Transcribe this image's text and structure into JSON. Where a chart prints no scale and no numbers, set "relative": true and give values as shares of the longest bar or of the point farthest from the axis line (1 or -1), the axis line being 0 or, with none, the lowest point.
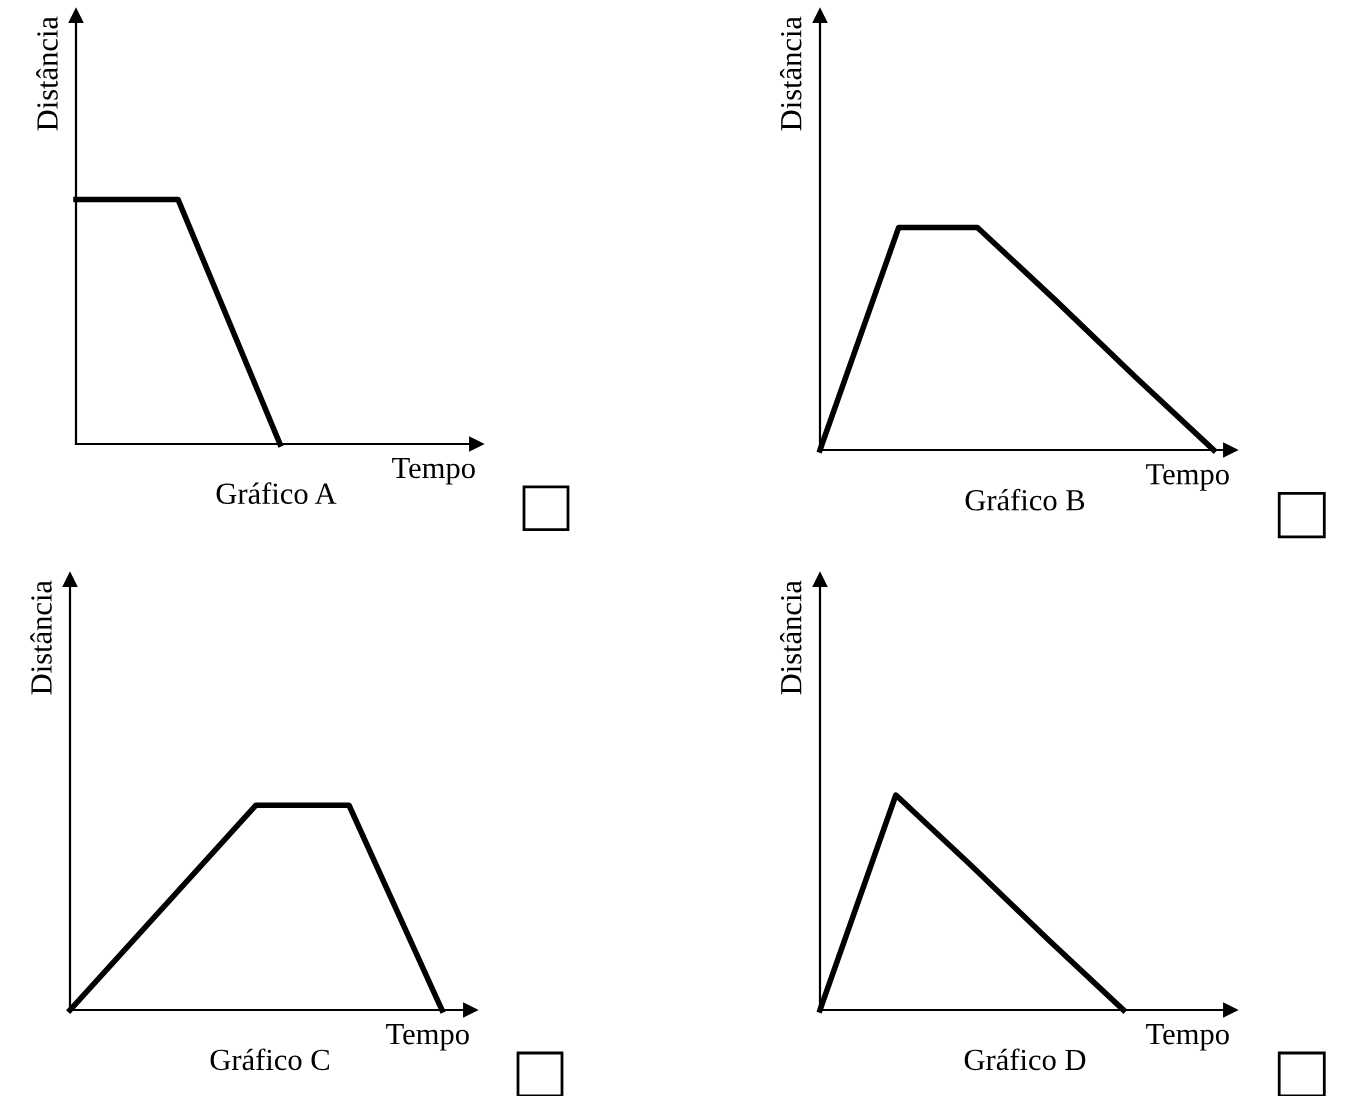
{
  "chart_data": [
    {
      "type": "line",
      "relative": true,
      "title": "Gráfico A",
      "xlabel": "Tempo",
      "ylabel": "Distância",
      "categories": [
        null,
        null,
        null
      ],
      "series": [
        {
          "color": "#000000",
          "values": [
            1,
            1,
            0
          ]
        }
      ]
    },
    {
      "type": "line",
      "relative": true,
      "title": "Gráfico B",
      "xlabel": "Tempo",
      "ylabel": "Distância",
      "categories": [
        null,
        null,
        null,
        null,
        null,
        null
      ],
      "series": [
        {
          "color": "#000000",
          "values": [
            0,
            1,
            1,
            0.67,
            0.33,
            0
          ]
        }
      ]
    },
    {
      "type": "line",
      "relative": true,
      "title": "Gráfico C",
      "xlabel": "Tempo",
      "ylabel": "Distância",
      "categories": [
        null,
        null,
        null,
        null,
        null
      ],
      "series": [
        {
          "color": "#000000",
          "values": [
            0,
            0.5,
            1,
            1,
            0
          ]
        }
      ]
    },
    {
      "type": "line",
      "relative": true,
      "title": "Gráfico D",
      "xlabel": "Tempo",
      "ylabel": "Distância",
      "categories": [
        null,
        null,
        null,
        null,
        null
      ],
      "series": [
        {
          "color": "#000000",
          "values": [
            0,
            1,
            0.67,
            0.33,
            0
          ]
        }
      ]
    }
  ]
}
